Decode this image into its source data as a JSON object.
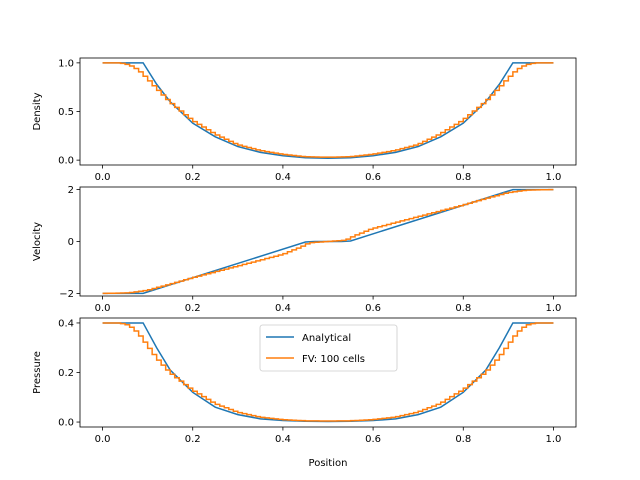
{
  "chart_data": {
    "type": "line",
    "xlabel": "Position",
    "xlim": [
      -0.05,
      1.05
    ],
    "xticks": [
      0.0,
      0.2,
      0.4,
      0.6,
      0.8,
      1.0
    ],
    "xtick_labels": [
      "0.0",
      "0.2",
      "0.4",
      "0.6",
      "0.8",
      "1.0"
    ],
    "series_styles": [
      {
        "name": "Analytical",
        "color": "#1f77b4"
      },
      {
        "name": "FV: 100 cells",
        "color": "#ff7f0e"
      }
    ],
    "legend": {
      "placement": "upper-center",
      "panel": 2,
      "entries": [
        "Analytical",
        "FV: 100 cells"
      ]
    },
    "panels": [
      {
        "ylabel": "Density",
        "ylim": [
          -0.05,
          1.05
        ],
        "yticks": [
          0.0,
          0.5,
          1.0
        ],
        "ytick_labels": [
          "0.0",
          "0.5",
          "1.0"
        ],
        "series": [
          {
            "name": "Analytical",
            "x": [
              0.0,
              0.09,
              0.12,
              0.15,
              0.2,
              0.25,
              0.3,
              0.35,
              0.4,
              0.45,
              0.5,
              0.55,
              0.6,
              0.65,
              0.7,
              0.75,
              0.8,
              0.85,
              0.88,
              0.91,
              1.0
            ],
            "y": [
              1.0,
              1.0,
              0.78,
              0.6,
              0.38,
              0.24,
              0.14,
              0.08,
              0.045,
              0.025,
              0.02,
              0.025,
              0.045,
              0.08,
              0.14,
              0.24,
              0.38,
              0.6,
              0.78,
              1.0,
              1.0
            ]
          },
          {
            "name": "FV: 100 cells",
            "x": [
              0.0,
              0.04,
              0.06,
              0.08,
              0.1,
              0.12,
              0.15,
              0.2,
              0.25,
              0.3,
              0.35,
              0.4,
              0.45,
              0.5,
              0.55,
              0.6,
              0.65,
              0.7,
              0.75,
              0.8,
              0.85,
              0.88,
              0.9,
              0.92,
              0.94,
              0.96,
              1.0
            ],
            "y": [
              1.0,
              1.0,
              0.98,
              0.93,
              0.84,
              0.74,
              0.6,
              0.41,
              0.27,
              0.16,
              0.1,
              0.06,
              0.035,
              0.03,
              0.035,
              0.06,
              0.1,
              0.16,
              0.27,
              0.41,
              0.6,
              0.74,
              0.84,
              0.93,
              0.98,
              1.0,
              1.0
            ]
          }
        ]
      },
      {
        "ylabel": "Velocity",
        "ylim": [
          -2.1,
          2.1
        ],
        "yticks": [
          -2,
          0,
          2
        ],
        "ytick_labels": [
          "−2",
          "0",
          "2"
        ],
        "series": [
          {
            "name": "Analytical",
            "x": [
              0.0,
              0.09,
              0.45,
              0.47,
              0.53,
              0.55,
              0.91,
              1.0
            ],
            "y": [
              -2.0,
              -2.0,
              -0.02,
              0.0,
              0.0,
              0.02,
              2.0,
              2.0
            ]
          },
          {
            "name": "FV: 100 cells",
            "x": [
              0.0,
              0.06,
              0.1,
              0.15,
              0.2,
              0.3,
              0.4,
              0.44,
              0.46,
              0.5,
              0.54,
              0.56,
              0.6,
              0.7,
              0.8,
              0.85,
              0.9,
              0.94,
              1.0
            ],
            "y": [
              -2.0,
              -1.98,
              -1.88,
              -1.65,
              -1.4,
              -0.95,
              -0.5,
              -0.22,
              -0.05,
              0.0,
              0.05,
              0.22,
              0.5,
              0.95,
              1.4,
              1.65,
              1.88,
              1.98,
              2.0
            ]
          }
        ]
      },
      {
        "ylabel": "Pressure",
        "ylim": [
          -0.02,
          0.42
        ],
        "yticks": [
          0.0,
          0.2,
          0.4
        ],
        "ytick_labels": [
          "0.0",
          "0.2",
          "0.4"
        ],
        "series": [
          {
            "name": "Analytical",
            "x": [
              0.0,
              0.09,
              0.12,
              0.15,
              0.2,
              0.25,
              0.3,
              0.35,
              0.4,
              0.45,
              0.5,
              0.55,
              0.6,
              0.65,
              0.7,
              0.75,
              0.8,
              0.85,
              0.88,
              0.91,
              1.0
            ],
            "y": [
              0.4,
              0.4,
              0.3,
              0.21,
              0.12,
              0.06,
              0.03,
              0.013,
              0.006,
              0.003,
              0.002,
              0.003,
              0.006,
              0.013,
              0.03,
              0.06,
              0.12,
              0.21,
              0.3,
              0.4,
              0.4
            ]
          },
          {
            "name": "FV: 100 cells",
            "x": [
              0.0,
              0.04,
              0.06,
              0.08,
              0.1,
              0.12,
              0.15,
              0.2,
              0.25,
              0.3,
              0.35,
              0.4,
              0.45,
              0.5,
              0.55,
              0.6,
              0.65,
              0.7,
              0.75,
              0.8,
              0.85,
              0.88,
              0.9,
              0.92,
              0.94,
              0.96,
              1.0
            ],
            "y": [
              0.4,
              0.4,
              0.39,
              0.36,
              0.31,
              0.26,
              0.2,
              0.13,
              0.075,
              0.04,
              0.02,
              0.01,
              0.005,
              0.004,
              0.005,
              0.01,
              0.02,
              0.04,
              0.075,
              0.13,
              0.2,
              0.26,
              0.31,
              0.36,
              0.39,
              0.4,
              0.4
            ]
          }
        ]
      }
    ]
  }
}
